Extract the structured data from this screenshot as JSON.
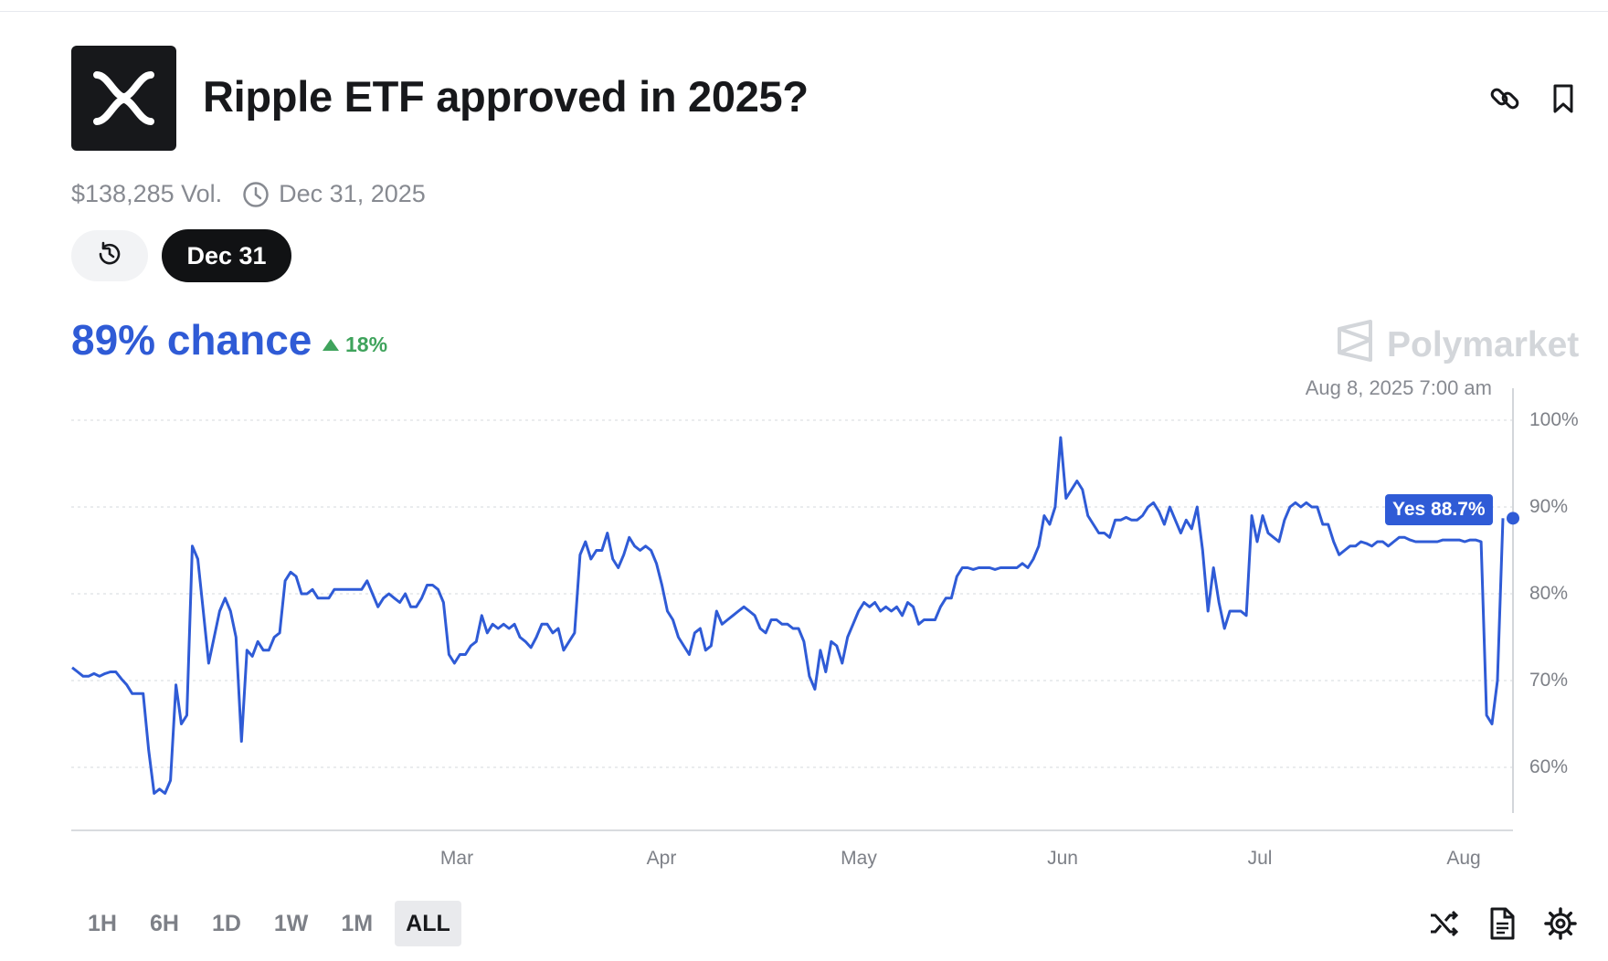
{
  "market": {
    "title": "Ripple ETF approved in 2025?",
    "volume": "$138,285 Vol.",
    "end_date": "Dec 31, 2025",
    "date_tab": "Dec 31",
    "chance": "89% chance",
    "change": "18%",
    "brand": "Polymarket",
    "hover_date": "Aug 8, 2025 7:00 am",
    "tooltip": "Yes 88.7%"
  },
  "icons": {
    "logo": "xrp-logo-icon",
    "link": "link-icon",
    "bookmark": "bookmark-icon",
    "clock": "clock-icon",
    "history": "history-icon",
    "brand": "polymarket-logo-icon",
    "shuffle": "shuffle-icon",
    "document": "document-icon",
    "settings": "gear-icon"
  },
  "colors": {
    "line": "#2f5bd6",
    "positive": "#3fa35c",
    "dark": "#111214"
  },
  "ranges": [
    "1H",
    "6H",
    "1D",
    "1W",
    "1M",
    "ALL"
  ],
  "active_range": "ALL",
  "chart_data": {
    "type": "line",
    "y_tick_labels": [
      "100%",
      "90%",
      "80%",
      "70%",
      "60%"
    ],
    "ylim": [
      55,
      100
    ],
    "grid": true,
    "x_tick_labels": [
      "Mar",
      "Apr",
      "May",
      "Jun",
      "Jul",
      "Aug"
    ],
    "series": [
      {
        "values": [
          71.5,
          71,
          70.5,
          70.5,
          70.8,
          70.5,
          70.8,
          71,
          71,
          70.2,
          69.5,
          68.5,
          68.5,
          68.5,
          62,
          57,
          57.5,
          57,
          58.5,
          69.5,
          65,
          66,
          85.5,
          84,
          78,
          72,
          75,
          78,
          79.5,
          78,
          75,
          63,
          73.5,
          72.8,
          74.5,
          73.5,
          73.5,
          75,
          75.5,
          81.5,
          82.5,
          82,
          80,
          80,
          80.5,
          79.5,
          79.5,
          79.5,
          80.5,
          80.5,
          80.5,
          80.5,
          80.5,
          80.5,
          81.5,
          80,
          78.5,
          79.5,
          80,
          79.5,
          79,
          80,
          78.5,
          78.5,
          79.5,
          81,
          81,
          80.5,
          79,
          73,
          72,
          73,
          73,
          74,
          74.5,
          77.5,
          75.5,
          76.5,
          76,
          76.5,
          76,
          76.5,
          75,
          74.5,
          73.8,
          75,
          76.5,
          76.5,
          75.5,
          76,
          73.5,
          74.5,
          75.5,
          84.5,
          86,
          84,
          85,
          85,
          87,
          84,
          83,
          84.5,
          86.5,
          85.5,
          85,
          85.5,
          85,
          83.5,
          81,
          78,
          77,
          75,
          74,
          73,
          75.5,
          76,
          73.5,
          74,
          78,
          76.5,
          77,
          77.5,
          78,
          78.5,
          78,
          77.5,
          76,
          75.5,
          77,
          77,
          76.5,
          76.5,
          76,
          76,
          74.5,
          70.5,
          69,
          73.5,
          71,
          74.5,
          74,
          72,
          75,
          76.5,
          78,
          79,
          78.5,
          79,
          78,
          78.5,
          78,
          78.5,
          77.5,
          79,
          78.5,
          76.5,
          77,
          77,
          77,
          78.5,
          79.5,
          79.5,
          82,
          83,
          83,
          82.8,
          83,
          83,
          83,
          82.8,
          83,
          83,
          83,
          83,
          83.5,
          83,
          84,
          85.5,
          89,
          88,
          90,
          98,
          91,
          92,
          93,
          92,
          89,
          88,
          87,
          87,
          86.5,
          88.5,
          88.5,
          88.8,
          88.5,
          88.5,
          89,
          90,
          90.5,
          89.5,
          88,
          90,
          88.5,
          87,
          88.5,
          87.5,
          90,
          85,
          78,
          83,
          79,
          76,
          78,
          78,
          78,
          77.5,
          89,
          86,
          89,
          87,
          86.5,
          86,
          88.5,
          90,
          90.5,
          90,
          90.5,
          90,
          90,
          88,
          88,
          86,
          84.5,
          85,
          85.5,
          85.5,
          86,
          85.8,
          85.5,
          86,
          86,
          85.5,
          86,
          86.5,
          86.5,
          86.2,
          86,
          86,
          86,
          86,
          86,
          86.2,
          86.2,
          86.2,
          86.2,
          86,
          86.2,
          86.2,
          86,
          66,
          65,
          70,
          88.7
        ]
      }
    ]
  }
}
